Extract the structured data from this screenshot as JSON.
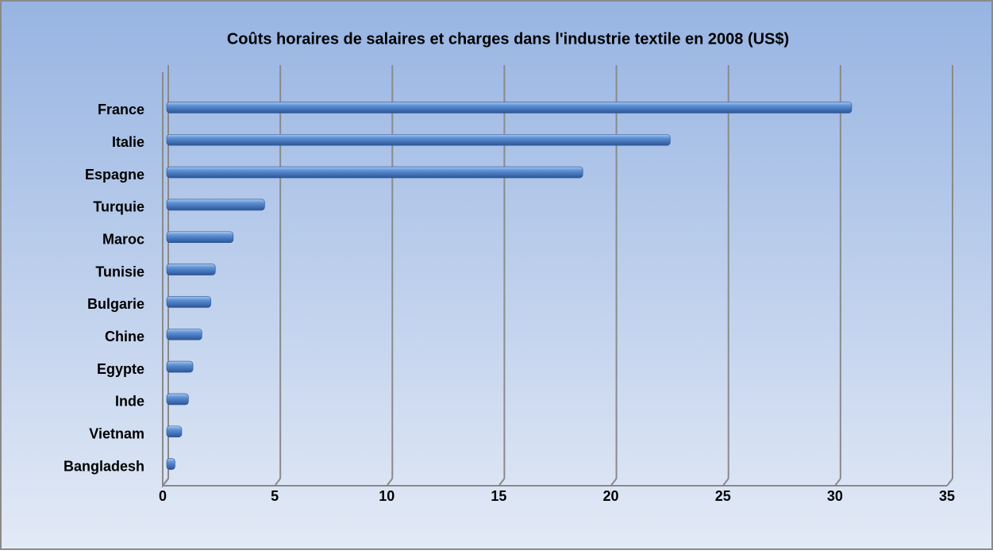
{
  "chart_data": {
    "type": "bar",
    "orientation": "horizontal",
    "title": "Coûts horaires de salaires et charges dans l'industrie textile en 2008 (US$)",
    "categories": [
      "France",
      "Italie",
      "Espagne",
      "Turquie",
      "Maroc",
      "Tunisie",
      "Bulgarie",
      "Chine",
      "Egypte",
      "Inde",
      "Vietnam",
      "Bangladesh"
    ],
    "values": [
      30.5,
      22.4,
      18.5,
      4.3,
      2.9,
      2.1,
      1.9,
      1.5,
      1.1,
      0.9,
      0.6,
      0.3
    ],
    "color": "#4a7ebf",
    "xlim": [
      0,
      35
    ],
    "xticks": [
      0,
      5,
      10,
      15,
      20,
      25,
      30,
      35
    ],
    "grid": true
  }
}
